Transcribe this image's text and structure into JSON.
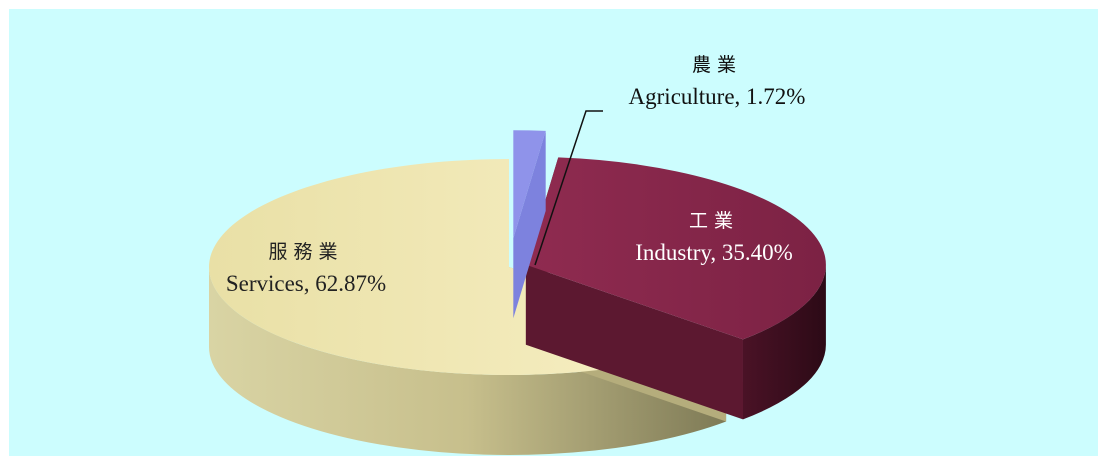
{
  "chart_data": {
    "type": "pie",
    "style": "3d-exploded",
    "slices": [
      {
        "label_zh": "服務業",
        "label_en": "Services",
        "value": 62.87,
        "display": "Services, 62.87%",
        "color": "#efe6b0"
      },
      {
        "label_zh": "工業",
        "label_en": "Industry",
        "value": 35.4,
        "display": "Industry, 35.40%",
        "color": "#8b2a4d"
      },
      {
        "label_zh": "農業",
        "label_en": "Agriculture",
        "value": 1.72,
        "display": "Agriculture, 1.72%",
        "color": "#8f93ea"
      }
    ]
  },
  "labels": {
    "services_zh": "服務業",
    "services_en": "Services, 62.87%",
    "industry_zh": "工業",
    "industry_en": "Industry, 35.40%",
    "agri_zh": "農業",
    "agri_en": "Agriculture, 1.72%"
  },
  "colors": {
    "background": "#ccfdfe",
    "services": "#efe6b0",
    "industry": "#8b2a4d",
    "agriculture": "#8f93ea"
  }
}
